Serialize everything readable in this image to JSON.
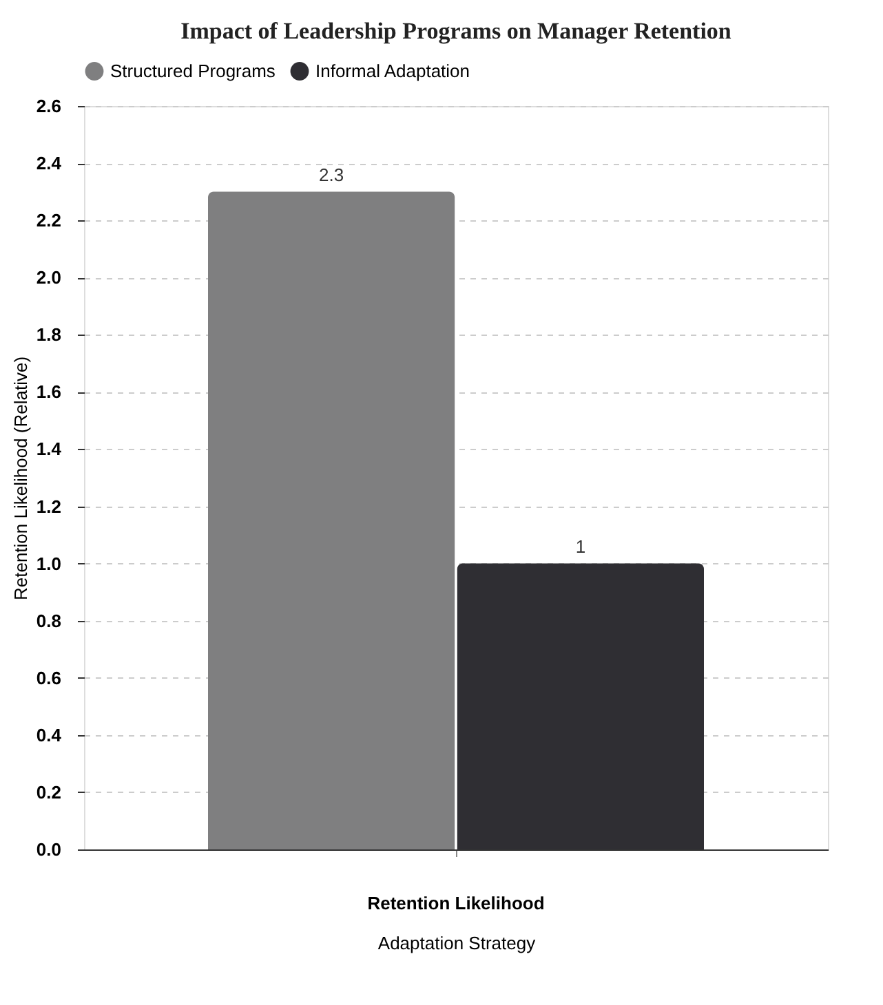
{
  "chart_data": {
    "type": "bar",
    "title": "Impact of Leadership Programs on Manager Retention",
    "categories": [
      "Retention Likelihood"
    ],
    "series": [
      {
        "name": "Structured Programs",
        "color": "#7f7f80",
        "values": [
          2.3
        ]
      },
      {
        "name": "Informal Adaptation",
        "color": "#2f2e33",
        "values": [
          1
        ]
      }
    ],
    "xlabel": "Adaptation Strategy",
    "ylabel": "Retention Likelihood (Relative)",
    "ylim": [
      0,
      2.6
    ],
    "yticks": [
      {
        "value": 0,
        "label": "0.0"
      },
      0.2,
      0.4,
      0.6,
      0.8,
      {
        "value": 1,
        "label": "1.0"
      },
      1.2,
      1.4,
      1.6,
      1.8,
      {
        "value": 2,
        "label": "2.0"
      },
      2.2,
      2.4,
      2.6
    ],
    "grid": "y",
    "legend": "top",
    "data_labels": true
  }
}
